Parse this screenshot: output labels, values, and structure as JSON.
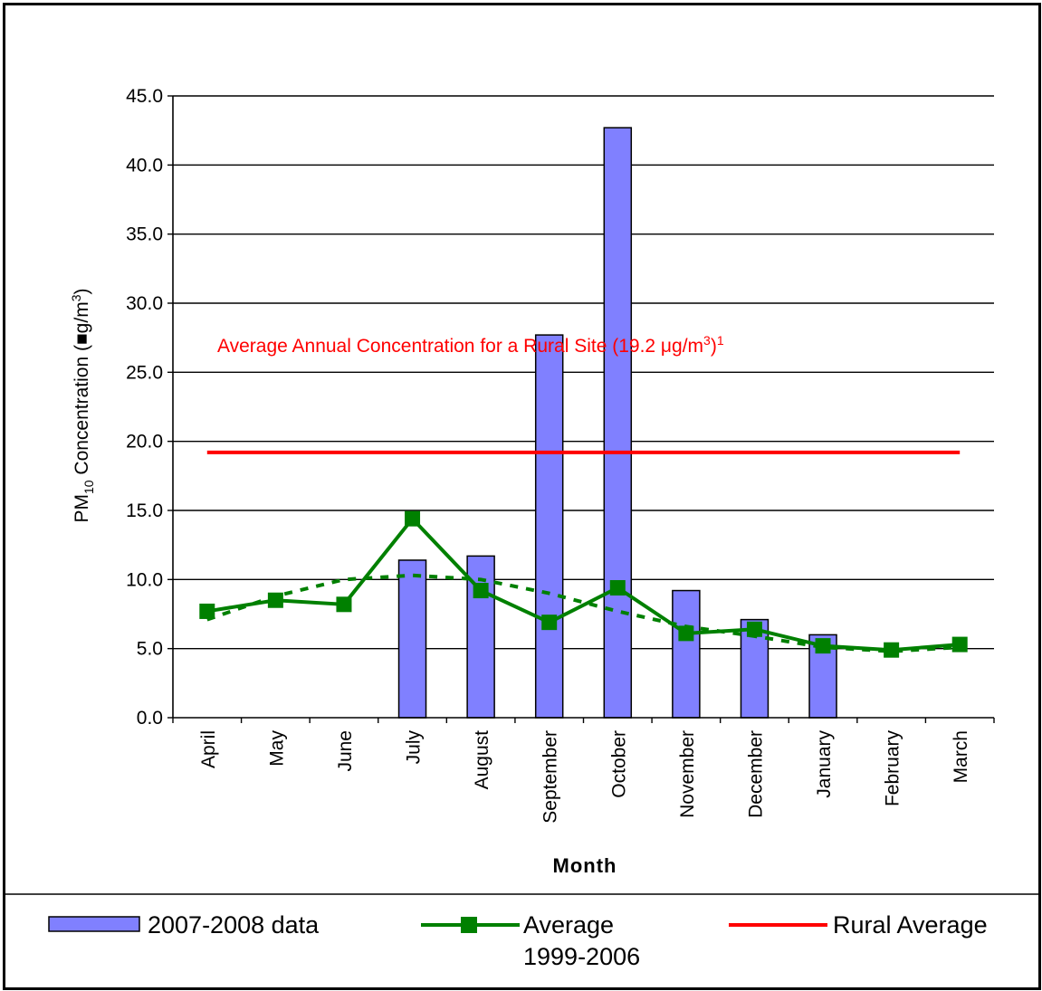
{
  "chart_data": {
    "type": "bar",
    "categories": [
      "April",
      "May",
      "June",
      "July",
      "August",
      "September",
      "October",
      "November",
      "December",
      "January",
      "February",
      "March"
    ],
    "series": [
      {
        "name": "2007-2008 data",
        "kind": "bar",
        "color": "#8080ff",
        "values": [
          null,
          null,
          null,
          11.4,
          11.7,
          27.7,
          42.7,
          9.2,
          7.1,
          6.0,
          null,
          null
        ]
      },
      {
        "name": "Average 1999-2006",
        "kind": "line",
        "color": "#008000",
        "values": [
          7.7,
          8.5,
          8.2,
          14.4,
          9.2,
          6.9,
          9.4,
          6.1,
          6.4,
          5.2,
          4.9,
          5.3
        ]
      },
      {
        "name": "Rural Average",
        "kind": "line",
        "color": "#ff0000",
        "values": [
          19.2,
          19.2,
          19.2,
          19.2,
          19.2,
          19.2,
          19.2,
          19.2,
          19.2,
          19.2,
          19.2,
          19.2
        ]
      }
    ],
    "trendline": {
      "color": "#008000",
      "style": "dashed",
      "values": [
        7.1,
        8.8,
        10.0,
        10.3,
        10.0,
        9.0,
        7.7,
        6.6,
        5.9,
        5.1,
        4.8,
        5.1
      ]
    },
    "ylim": [
      0,
      45
    ],
    "yticks": [
      "0.0",
      "5.0",
      "10.0",
      "15.0",
      "20.0",
      "25.0",
      "30.0",
      "35.0",
      "40.0",
      "45.0"
    ],
    "xlabel": "Month",
    "ylabel": {
      "prefix": "PM",
      "sub": "10",
      "middle": " Concentration (",
      "glyph": "■",
      "unit": "g/m",
      "sup": "3",
      "suffix": ")"
    },
    "annotation": {
      "color": "#ff0000",
      "pre": "Average Annual Concentration for a Rural Site (19.2 ",
      "mu": "μ",
      "unit": "g/m",
      "sup": "3",
      "close": ")",
      "note": "1"
    },
    "grid": true,
    "legend": {
      "position": "bottom",
      "items": [
        {
          "label_lines": [
            "2007-2008 data"
          ]
        },
        {
          "label_lines": [
            "Average",
            "1999-2006"
          ]
        },
        {
          "label_lines": [
            "Rural Average"
          ]
        }
      ]
    }
  }
}
